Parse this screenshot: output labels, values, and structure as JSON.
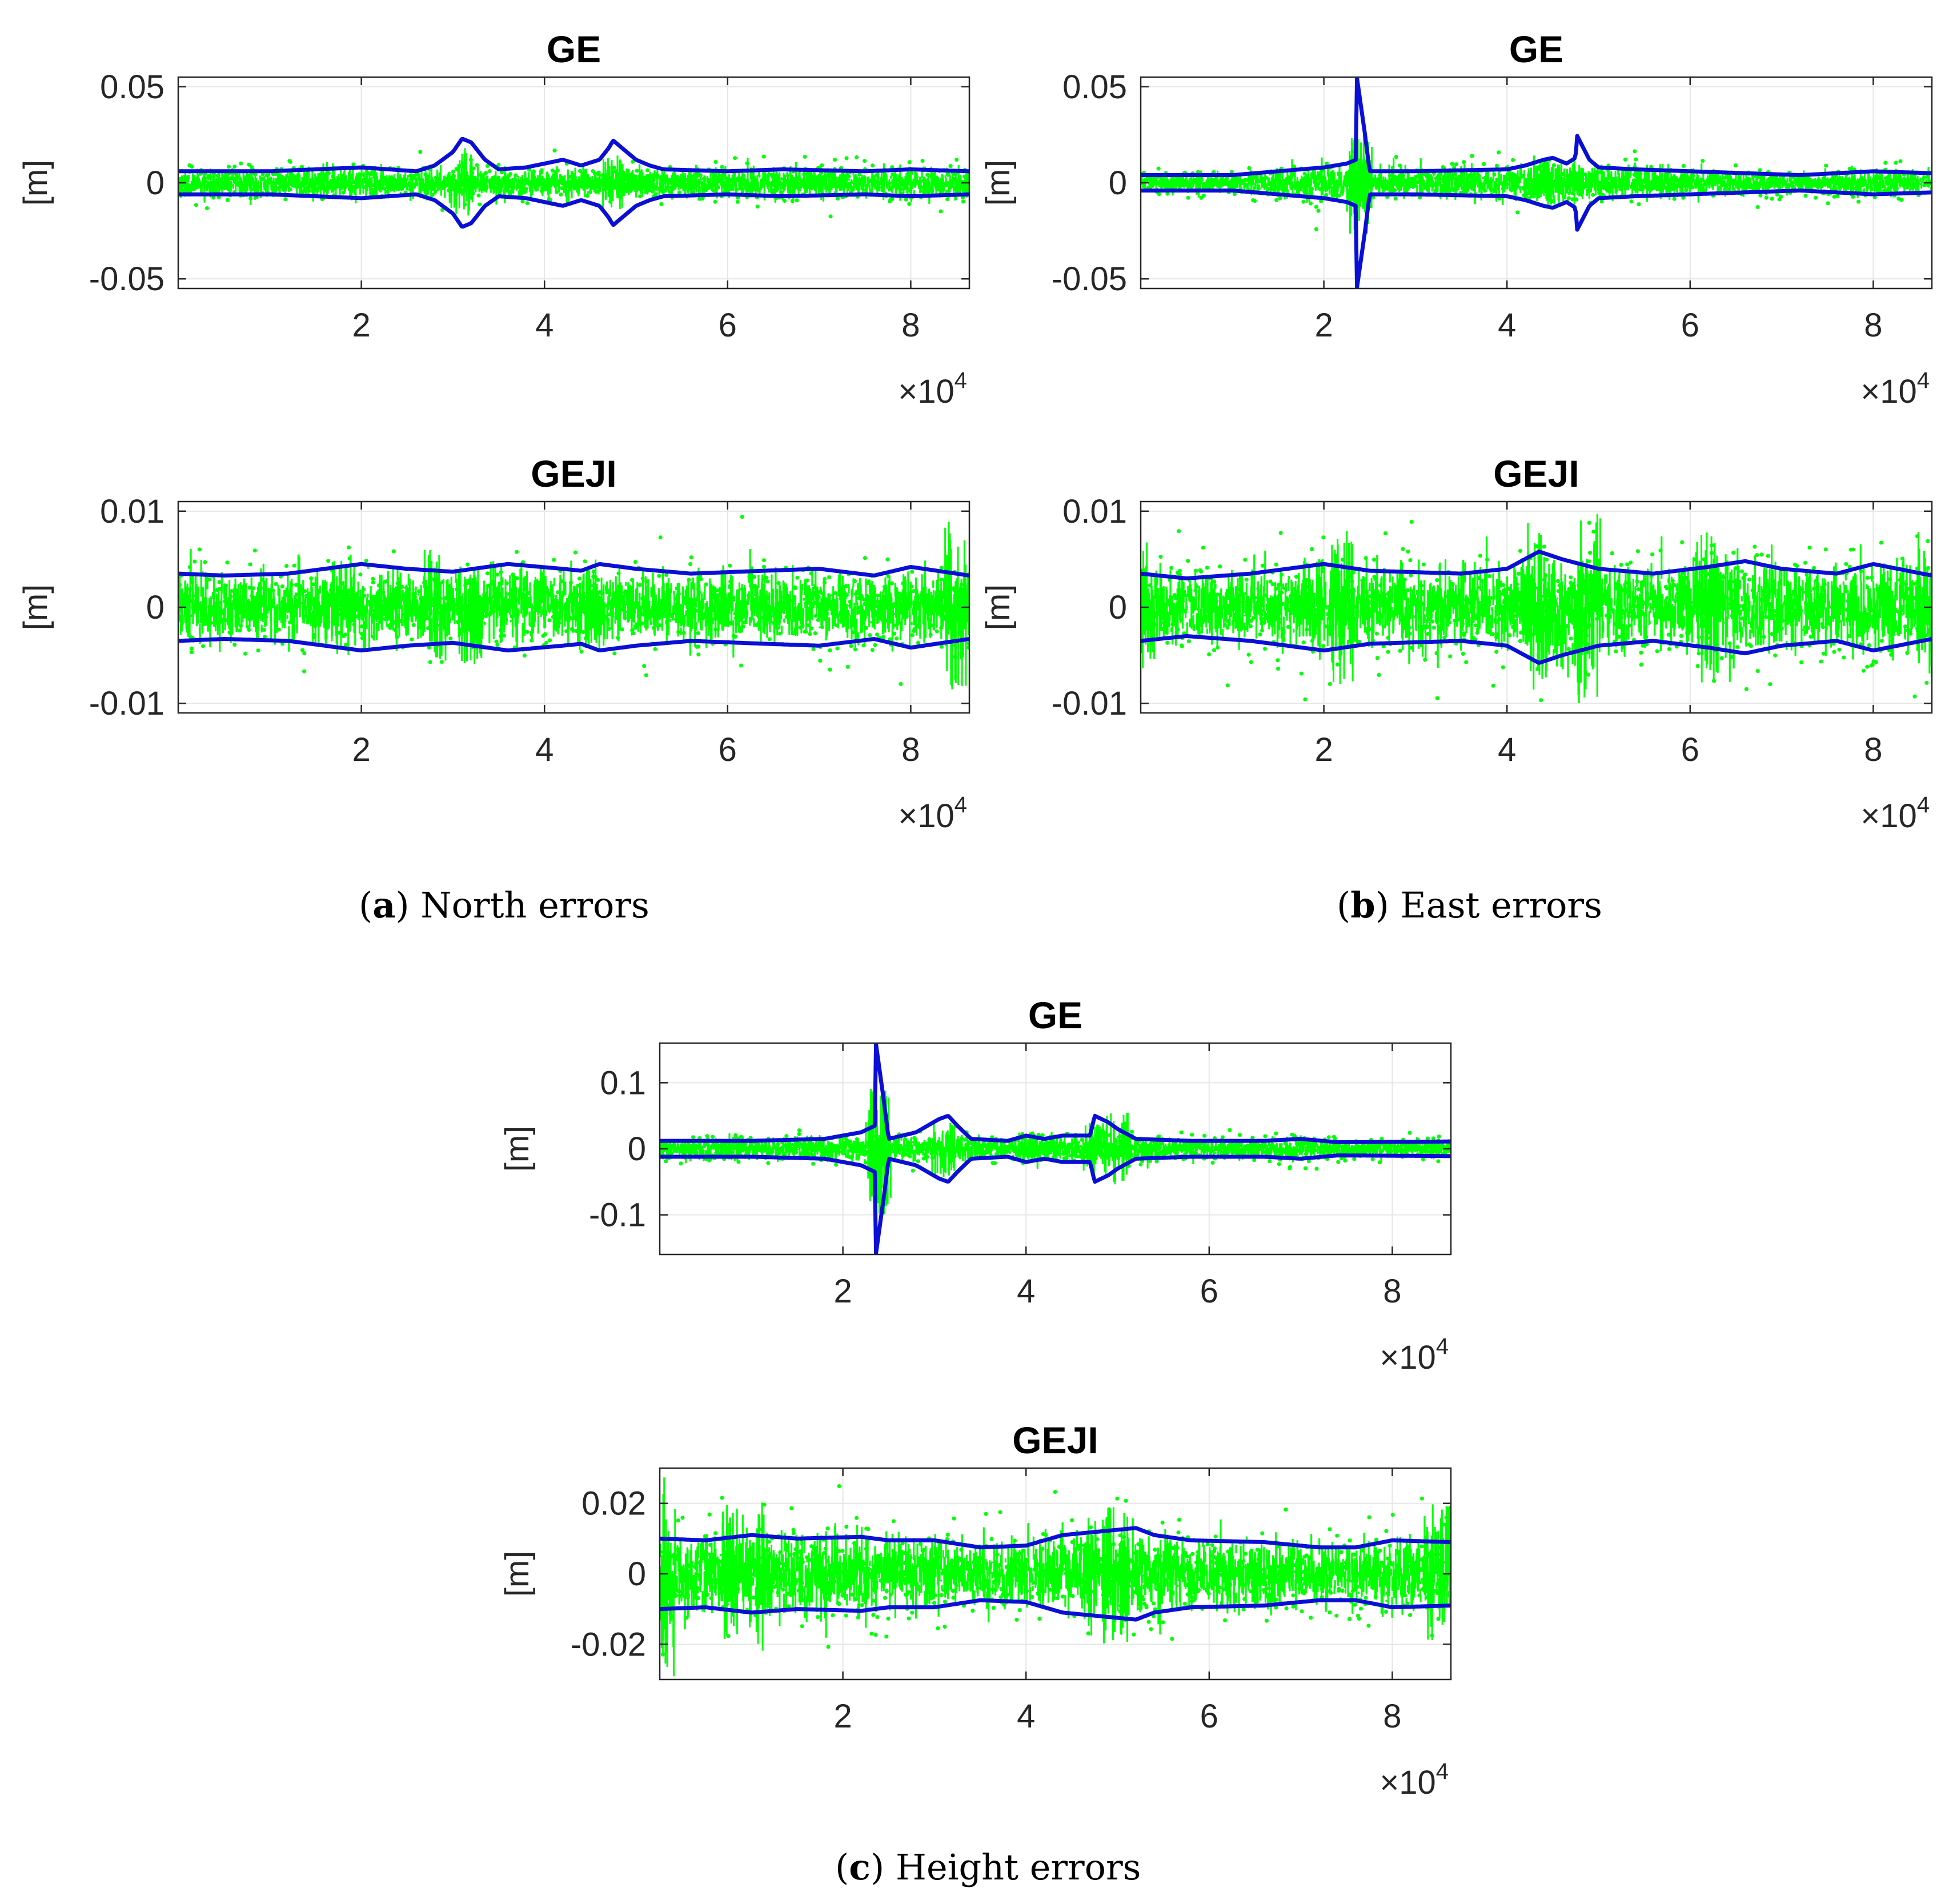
{
  "captions": {
    "a": {
      "letter": "a",
      "text": "North errors"
    },
    "b": {
      "letter": "b",
      "text": "East errors"
    },
    "c": {
      "letter": "c",
      "text": "Height errors"
    }
  },
  "colors": {
    "scatter": "#00ff00",
    "bound": "#0a0fd6",
    "grid": "#e6e6e6",
    "axis": "#262626"
  },
  "chart_data": [
    {
      "id": "north-ge",
      "type": "scatter",
      "title": "GE",
      "ylabel": "[m]",
      "xlim": [
        0,
        86400
      ],
      "ylim": [
        -0.055,
        0.055
      ],
      "xticks": [
        20000,
        40000,
        60000,
        80000
      ],
      "xtick_labels": [
        "2",
        "4",
        "6",
        "8"
      ],
      "x_multiplier": "×10",
      "x_multiplier_exp": "4",
      "yticks": [
        -0.05,
        0,
        0.05
      ],
      "ytick_labels": [
        "-0.05",
        "0",
        "0.05"
      ],
      "series": [
        {
          "name": "errors",
          "kind": "points",
          "noise": 0.0035,
          "spikes": [
            [
              23500,
              0.004
            ],
            [
              31000,
              0.018
            ],
            [
              40000,
              0.005
            ],
            [
              44000,
              0.004
            ],
            [
              47500,
              0.015
            ],
            [
              50000,
              0.006
            ]
          ]
        },
        {
          "name": "bound",
          "kind": "symmetric-line",
          "points": [
            [
              0,
              0.006
            ],
            [
              10000,
              0.006
            ],
            [
              20000,
              0.008
            ],
            [
              23000,
              0.007
            ],
            [
              26000,
              0.006
            ],
            [
              28000,
              0.009
            ],
            [
              30000,
              0.016
            ],
            [
              31000,
              0.023
            ],
            [
              32000,
              0.021
            ],
            [
              33500,
              0.012
            ],
            [
              35000,
              0.007
            ],
            [
              38000,
              0.008
            ],
            [
              40000,
              0.01
            ],
            [
              42000,
              0.012
            ],
            [
              44000,
              0.009
            ],
            [
              46000,
              0.012
            ],
            [
              47000,
              0.018
            ],
            [
              47500,
              0.022
            ],
            [
              48500,
              0.018
            ],
            [
              50000,
              0.012
            ],
            [
              51500,
              0.009
            ],
            [
              53000,
              0.007
            ],
            [
              60000,
              0.006
            ],
            [
              66000,
              0.007
            ],
            [
              75000,
              0.006
            ],
            [
              80000,
              0.007
            ],
            [
              86400,
              0.006
            ]
          ]
        }
      ]
    },
    {
      "id": "east-ge",
      "type": "scatter",
      "title": "GE",
      "ylabel": "[m]",
      "xlim": [
        0,
        86400
      ],
      "ylim": [
        -0.055,
        0.055
      ],
      "xticks": [
        20000,
        40000,
        60000,
        80000
      ],
      "xtick_labels": [
        "2",
        "4",
        "6",
        "8"
      ],
      "x_multiplier": "×10",
      "x_multiplier_exp": "4",
      "yticks": [
        -0.05,
        0,
        0.05
      ],
      "ytick_labels": [
        "-0.05",
        "0",
        "0.05"
      ],
      "series": [
        {
          "name": "errors",
          "kind": "points",
          "noise": 0.0045,
          "spikes": [
            [
              23500,
              0.018
            ],
            [
              24000,
              0.028
            ],
            [
              43500,
              0.008
            ],
            [
              44500,
              0.012
            ],
            [
              47000,
              0.006
            ],
            [
              58000,
              0.006
            ]
          ]
        },
        {
          "name": "bound",
          "kind": "symmetric-line",
          "points": [
            [
              0,
              0.004
            ],
            [
              10000,
              0.004
            ],
            [
              20000,
              0.008
            ],
            [
              22500,
              0.01
            ],
            [
              23500,
              0.012
            ],
            [
              23600,
              0.055
            ],
            [
              24500,
              0.025
            ],
            [
              25000,
              0.006
            ],
            [
              30000,
              0.006
            ],
            [
              40000,
              0.007
            ],
            [
              42000,
              0.009
            ],
            [
              44000,
              0.012
            ],
            [
              45000,
              0.013
            ],
            [
              46500,
              0.01
            ],
            [
              47500,
              0.013
            ],
            [
              47600,
              0.025
            ],
            [
              49000,
              0.012
            ],
            [
              50000,
              0.008
            ],
            [
              54000,
              0.007
            ],
            [
              60000,
              0.006
            ],
            [
              66000,
              0.005
            ],
            [
              72000,
              0.004
            ],
            [
              80000,
              0.006
            ],
            [
              86400,
              0.005
            ]
          ]
        }
      ]
    },
    {
      "id": "north-geji",
      "type": "scatter",
      "title": "GEJI",
      "ylabel": "[m]",
      "xlim": [
        0,
        86400
      ],
      "ylim": [
        -0.011,
        0.011
      ],
      "xticks": [
        20000,
        40000,
        60000,
        80000
      ],
      "xtick_labels": [
        "2",
        "4",
        "6",
        "8"
      ],
      "x_multiplier": "×10",
      "x_multiplier_exp": "4",
      "yticks": [
        -0.01,
        0,
        0.01
      ],
      "ytick_labels": [
        "-0.01",
        "0",
        "0.01"
      ],
      "series": [
        {
          "name": "errors",
          "kind": "points",
          "noise": 0.0017,
          "spikes": [
            [
              28000,
              0.006
            ],
            [
              32000,
              0.006
            ],
            [
              45000,
              0.005
            ],
            [
              85000,
              0.009
            ],
            [
              18000,
              0.005
            ]
          ]
        },
        {
          "name": "bound",
          "kind": "symmetric-line",
          "points": [
            [
              0,
              0.0035
            ],
            [
              5000,
              0.0033
            ],
            [
              12000,
              0.0035
            ],
            [
              20000,
              0.0045
            ],
            [
              25000,
              0.004
            ],
            [
              30000,
              0.0037
            ],
            [
              36000,
              0.0045
            ],
            [
              42000,
              0.004
            ],
            [
              44000,
              0.0038
            ],
            [
              46000,
              0.0045
            ],
            [
              50000,
              0.004
            ],
            [
              56000,
              0.0035
            ],
            [
              64000,
              0.0038
            ],
            [
              70000,
              0.004
            ],
            [
              76000,
              0.0033
            ],
            [
              80000,
              0.0042
            ],
            [
              86400,
              0.0033
            ]
          ]
        }
      ]
    },
    {
      "id": "east-geji",
      "type": "scatter",
      "title": "GEJI",
      "ylabel": "[m]",
      "xlim": [
        0,
        86400
      ],
      "ylim": [
        -0.011,
        0.011
      ],
      "xticks": [
        20000,
        40000,
        60000,
        80000
      ],
      "xtick_labels": [
        "2",
        "4",
        "6",
        "8"
      ],
      "x_multiplier": "×10",
      "x_multiplier_exp": "4",
      "yticks": [
        -0.01,
        0,
        0.01
      ],
      "ytick_labels": [
        "-0.01",
        "0",
        "0.01"
      ],
      "series": [
        {
          "name": "errors",
          "kind": "points",
          "noise": 0.0026,
          "spikes": [
            [
              1000,
              0.007
            ],
            [
              22000,
              0.008
            ],
            [
              43500,
              0.009
            ],
            [
              49000,
              0.01
            ],
            [
              62000,
              0.008
            ],
            [
              86000,
              0.008
            ]
          ]
        },
        {
          "name": "bound",
          "kind": "symmetric-line",
          "points": [
            [
              0,
              0.0035
            ],
            [
              5000,
              0.003
            ],
            [
              12000,
              0.0035
            ],
            [
              20000,
              0.0045
            ],
            [
              25000,
              0.0038
            ],
            [
              35000,
              0.0035
            ],
            [
              40000,
              0.004
            ],
            [
              43500,
              0.0058
            ],
            [
              46000,
              0.005
            ],
            [
              50000,
              0.004
            ],
            [
              56000,
              0.0035
            ],
            [
              62000,
              0.0042
            ],
            [
              66000,
              0.0048
            ],
            [
              70000,
              0.004
            ],
            [
              76000,
              0.0035
            ],
            [
              80000,
              0.0045
            ],
            [
              86400,
              0.0033
            ]
          ]
        }
      ]
    },
    {
      "id": "height-ge",
      "type": "scatter",
      "title": "GE",
      "ylabel": "[m]",
      "xlim": [
        0,
        86400
      ],
      "ylim": [
        -0.16,
        0.16
      ],
      "xticks": [
        20000,
        40000,
        60000,
        80000
      ],
      "xtick_labels": [
        "2",
        "4",
        "6",
        "8"
      ],
      "x_multiplier": "×10",
      "x_multiplier_exp": "4",
      "yticks": [
        -0.1,
        0,
        0.1
      ],
      "ytick_labels": [
        "-0.1",
        "0",
        "0.1"
      ],
      "series": [
        {
          "name": "errors",
          "kind": "points",
          "noise": 0.009,
          "spikes": [
            [
              23500,
              0.1
            ],
            [
              24000,
              0.09
            ],
            [
              31000,
              0.045
            ],
            [
              40000,
              0.02
            ],
            [
              47500,
              0.04
            ],
            [
              50000,
              0.055
            ]
          ]
        },
        {
          "name": "bound",
          "kind": "symmetric-line",
          "points": [
            [
              0,
              0.012
            ],
            [
              10000,
              0.012
            ],
            [
              18000,
              0.015
            ],
            [
              22000,
              0.025
            ],
            [
              23500,
              0.035
            ],
            [
              23600,
              0.16
            ],
            [
              24500,
              0.07
            ],
            [
              25000,
              0.015
            ],
            [
              28000,
              0.025
            ],
            [
              30500,
              0.045
            ],
            [
              31500,
              0.05
            ],
            [
              32500,
              0.035
            ],
            [
              34000,
              0.015
            ],
            [
              38000,
              0.012
            ],
            [
              40000,
              0.02
            ],
            [
              42000,
              0.015
            ],
            [
              44000,
              0.02
            ],
            [
              47000,
              0.02
            ],
            [
              47500,
              0.05
            ],
            [
              49000,
              0.04
            ],
            [
              50000,
              0.03
            ],
            [
              52000,
              0.015
            ],
            [
              58000,
              0.012
            ],
            [
              66000,
              0.012
            ],
            [
              70000,
              0.015
            ],
            [
              74000,
              0.01
            ],
            [
              86400,
              0.011
            ]
          ]
        }
      ]
    },
    {
      "id": "height-geji",
      "type": "scatter",
      "title": "GEJI",
      "ylabel": "[m]",
      "xlim": [
        0,
        86400
      ],
      "ylim": [
        -0.03,
        0.03
      ],
      "xticks": [
        20000,
        40000,
        60000,
        80000
      ],
      "xtick_labels": [
        "2",
        "4",
        "6",
        "8"
      ],
      "x_multiplier": "×10",
      "x_multiplier_exp": "4",
      "yticks": [
        -0.02,
        0,
        0.02
      ],
      "ytick_labels": [
        "-0.02",
        "0",
        "0.02"
      ],
      "series": [
        {
          "name": "errors",
          "kind": "points",
          "noise": 0.0055,
          "spikes": [
            [
              500,
              0.03
            ],
            [
              8000,
              0.02
            ],
            [
              11000,
              0.022
            ],
            [
              48000,
              0.02
            ],
            [
              50000,
              0.02
            ],
            [
              85000,
              0.02
            ]
          ]
        },
        {
          "name": "bound",
          "kind": "symmetric-line",
          "points": [
            [
              0,
              0.01
            ],
            [
              5000,
              0.0095
            ],
            [
              10000,
              0.011
            ],
            [
              15000,
              0.01
            ],
            [
              22000,
              0.0105
            ],
            [
              25000,
              0.0095
            ],
            [
              30000,
              0.0095
            ],
            [
              35000,
              0.0075
            ],
            [
              40000,
              0.008
            ],
            [
              44000,
              0.011
            ],
            [
              48000,
              0.012
            ],
            [
              52000,
              0.013
            ],
            [
              54000,
              0.011
            ],
            [
              58000,
              0.0095
            ],
            [
              66000,
              0.009
            ],
            [
              72000,
              0.0075
            ],
            [
              76000,
              0.0075
            ],
            [
              80000,
              0.0095
            ],
            [
              86400,
              0.009
            ]
          ]
        }
      ]
    }
  ]
}
